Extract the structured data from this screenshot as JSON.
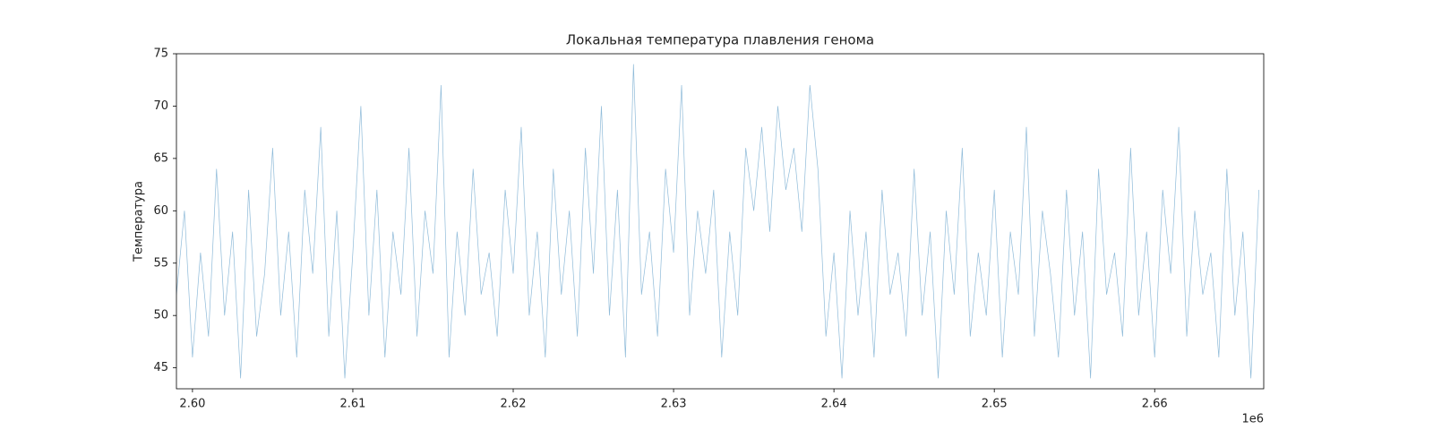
{
  "chart_data": {
    "type": "line",
    "title": "Локальная температура плавления генома",
    "y_label": "Температура",
    "x_offset_label": "1e6",
    "color": "#1f77b4",
    "x": [
      2599000,
      2599500,
      2600000,
      2600500,
      2601000,
      2601500,
      2602000,
      2602500,
      2603000,
      2603500,
      2604000,
      2604500,
      2605000,
      2605500,
      2606000,
      2606500,
      2607000,
      2607500,
      2608000,
      2608500,
      2609000,
      2609500,
      2610000,
      2610500,
      2611000,
      2611500,
      2612000,
      2612500,
      2613000,
      2613500,
      2614000,
      2614500,
      2615000,
      2615500,
      2616000,
      2616500,
      2617000,
      2617500,
      2618000,
      2618500,
      2619000,
      2619500,
      2620000,
      2620500,
      2621000,
      2621500,
      2622000,
      2622500,
      2623000,
      2623500,
      2624000,
      2624500,
      2625000,
      2625500,
      2626000,
      2626500,
      2627000,
      2627500,
      2628000,
      2628500,
      2629000,
      2629500,
      2630000,
      2630500,
      2631000,
      2631500,
      2632000,
      2632500,
      2633000,
      2633500,
      2634000,
      2634500,
      2635000,
      2635500,
      2636000,
      2636500,
      2637000,
      2637500,
      2638000,
      2638500,
      2639000,
      2639500,
      2640000,
      2640500,
      2641000,
      2641500,
      2642000,
      2642500,
      2643000,
      2643500,
      2644000,
      2644500,
      2645000,
      2645500,
      2646000,
      2646500,
      2647000,
      2647500,
      2648000,
      2648500,
      2649000,
      2649500,
      2650000,
      2650500,
      2651000,
      2651500,
      2652000,
      2652500,
      2653000,
      2653500,
      2654000,
      2654500,
      2655000,
      2655500,
      2656000,
      2656500,
      2657000,
      2657500,
      2658000,
      2658500,
      2659000,
      2659500,
      2660000,
      2660500,
      2661000,
      2661500,
      2662000,
      2662500,
      2663000,
      2663500,
      2664000,
      2664500,
      2665000,
      2665500,
      2666000,
      2666500
    ],
    "values": [
      52,
      60,
      46,
      56,
      48,
      64,
      50,
      58,
      44,
      62,
      48,
      54,
      66,
      50,
      58,
      46,
      62,
      54,
      68,
      48,
      60,
      44,
      56,
      70,
      50,
      62,
      46,
      58,
      52,
      66,
      48,
      60,
      54,
      72,
      46,
      58,
      50,
      64,
      52,
      56,
      48,
      62,
      54,
      68,
      50,
      58,
      46,
      64,
      52,
      60,
      48,
      66,
      54,
      70,
      50,
      62,
      46,
      74,
      52,
      58,
      48,
      64,
      56,
      72,
      50,
      60,
      54,
      62,
      46,
      58,
      50,
      66,
      60,
      68,
      58,
      70,
      62,
      66,
      58,
      72,
      64,
      48,
      56,
      44,
      60,
      50,
      58,
      46,
      62,
      52,
      56,
      48,
      64,
      50,
      58,
      44,
      60,
      52,
      66,
      48,
      56,
      50,
      62,
      46,
      58,
      52,
      68,
      48,
      60,
      54,
      46,
      62,
      50,
      58,
      44,
      64,
      52,
      56,
      48,
      66,
      50,
      58,
      46,
      62,
      54,
      68,
      48,
      60,
      52,
      56,
      46,
      64,
      50,
      58,
      44,
      62
    ],
    "xlim": [
      2599000,
      2666800
    ],
    "ylim": [
      43,
      75
    ],
    "xticks": [
      {
        "value": 2600000,
        "label": "2.60"
      },
      {
        "value": 2610000,
        "label": "2.61"
      },
      {
        "value": 2620000,
        "label": "2.62"
      },
      {
        "value": 2630000,
        "label": "2.63"
      },
      {
        "value": 2640000,
        "label": "2.64"
      },
      {
        "value": 2650000,
        "label": "2.65"
      },
      {
        "value": 2660000,
        "label": "2.66"
      }
    ],
    "yticks": [
      45,
      50,
      55,
      60,
      65,
      70,
      75
    ],
    "grid": false
  }
}
